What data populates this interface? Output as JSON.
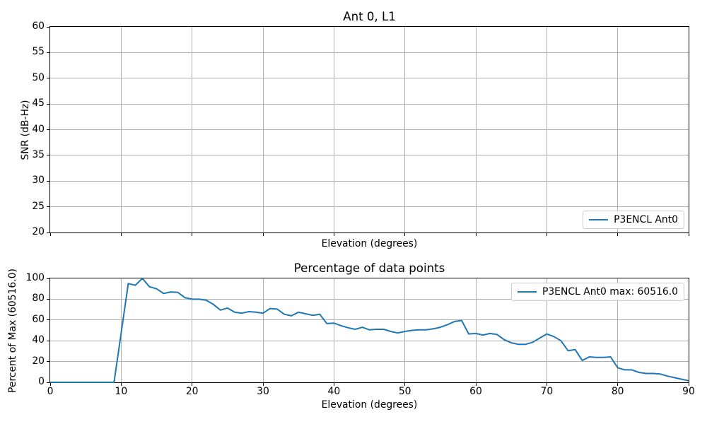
{
  "style": {
    "background": "#ffffff",
    "text_color": "#000000",
    "grid_color": "#b0b0b0",
    "spine_color": "#000000",
    "legend_border": "#cccccc",
    "line_color": "#1f77b4"
  },
  "chart_data": [
    {
      "type": "line",
      "title": "Ant 0, L1",
      "xlabel": "Elevation (degrees)",
      "ylabel": "SNR (dB-Hz)",
      "xlim": [
        0,
        90
      ],
      "ylim": [
        20,
        60
      ],
      "xticks": [
        0,
        10,
        20,
        30,
        40,
        50,
        60,
        70,
        80,
        90
      ],
      "yticks": [
        20,
        25,
        30,
        35,
        40,
        45,
        50,
        55,
        60
      ],
      "show_xtick_labels": false,
      "grid": true,
      "legend": {
        "label": "P3ENCL Ant0",
        "position": "lower right"
      },
      "series": [
        {
          "name": "P3ENCL Ant0",
          "color": "#1f77b4",
          "x": [],
          "y": []
        }
      ]
    },
    {
      "type": "line",
      "title": "Percentage of data points",
      "xlabel": "Elevation (degrees)",
      "ylabel": "Percent of Max (60516.0)",
      "xlim": [
        0,
        90
      ],
      "ylim": [
        0,
        100
      ],
      "xticks": [
        0,
        10,
        20,
        30,
        40,
        50,
        60,
        70,
        80,
        90
      ],
      "yticks": [
        0,
        20,
        40,
        60,
        80,
        100
      ],
      "show_xtick_labels": true,
      "grid": true,
      "legend": {
        "label": "P3ENCL Ant0 max: 60516.0",
        "position": "upper right"
      },
      "series": [
        {
          "name": "P3ENCL Ant0",
          "max": 60516.0,
          "color": "#1f77b4",
          "x": [
            0,
            1,
            2,
            3,
            4,
            5,
            6,
            7,
            8,
            9,
            10,
            11,
            12,
            13,
            14,
            15,
            16,
            17,
            18,
            19,
            20,
            21,
            22,
            23,
            24,
            25,
            26,
            27,
            28,
            29,
            30,
            31,
            32,
            33,
            34,
            35,
            36,
            37,
            38,
            39,
            40,
            41,
            42,
            43,
            44,
            45,
            46,
            47,
            48,
            49,
            50,
            51,
            52,
            53,
            54,
            55,
            56,
            57,
            58,
            59,
            60,
            61,
            62,
            63,
            64,
            65,
            66,
            67,
            68,
            69,
            70,
            71,
            72,
            73,
            74,
            75,
            76,
            77,
            78,
            79,
            80,
            81,
            82,
            83,
            84,
            85,
            86,
            87,
            88,
            89,
            90
          ],
          "y": [
            0,
            0,
            0,
            0,
            0,
            0,
            0,
            0,
            0,
            0,
            47,
            95,
            93.5,
            100,
            92,
            90,
            85.5,
            87,
            86.5,
            81.5,
            80,
            80,
            79,
            75,
            69.5,
            71.5,
            67.5,
            66.5,
            68,
            67.5,
            66.5,
            71,
            70.5,
            65.5,
            64,
            67.5,
            66,
            64.5,
            65.5,
            56.5,
            57,
            54.5,
            52.5,
            51,
            53,
            50.5,
            51,
            51,
            49,
            47.5,
            49,
            50,
            50.5,
            50.5,
            51.5,
            53,
            55.5,
            58.5,
            59.5,
            46.5,
            47,
            45.5,
            47,
            46,
            41,
            38,
            36.5,
            36.5,
            38.5,
            42.5,
            46.5,
            44,
            40,
            30.5,
            31.5,
            21,
            24.5,
            24,
            24,
            24.5,
            14,
            12,
            12,
            9.5,
            8.5,
            8.5,
            8,
            6,
            4.5,
            3,
            1.5
          ]
        }
      ]
    }
  ]
}
